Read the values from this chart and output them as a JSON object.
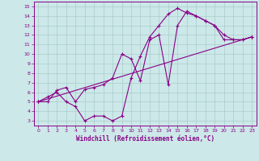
{
  "xlabel": "Windchill (Refroidissement éolien,°C)",
  "xlim": [
    -0.5,
    23.5
  ],
  "ylim": [
    2.5,
    15.5
  ],
  "xticks": [
    0,
    1,
    2,
    3,
    4,
    5,
    6,
    7,
    8,
    9,
    10,
    11,
    12,
    13,
    14,
    15,
    16,
    17,
    18,
    19,
    20,
    21,
    22,
    23
  ],
  "yticks": [
    3,
    4,
    5,
    6,
    7,
    8,
    9,
    10,
    11,
    12,
    13,
    14,
    15
  ],
  "bg_color": "#cce8e8",
  "line_color": "#880088",
  "grid_color": "#aacccc",
  "line1_x": [
    0,
    1,
    2,
    3,
    4,
    5,
    6,
    7,
    8,
    9,
    10,
    11,
    12,
    13,
    14,
    15,
    16,
    17,
    18,
    19,
    20,
    21,
    22,
    23
  ],
  "line1_y": [
    5.0,
    5.5,
    6.0,
    5.0,
    4.5,
    3.0,
    3.5,
    3.5,
    3.0,
    3.5,
    7.5,
    9.8,
    11.8,
    13.0,
    14.2,
    14.8,
    14.3,
    14.0,
    13.5,
    13.0,
    12.0,
    11.5,
    11.5,
    11.8
  ],
  "line2_x": [
    0,
    1,
    2,
    3,
    4,
    5,
    6,
    7,
    8,
    9,
    10,
    11,
    12,
    13,
    14,
    15,
    16,
    17,
    18,
    19,
    20,
    21,
    22,
    23
  ],
  "line2_y": [
    5.0,
    5.0,
    6.2,
    6.5,
    5.0,
    6.3,
    6.5,
    6.8,
    7.5,
    10.0,
    9.5,
    7.2,
    11.5,
    12.0,
    6.8,
    13.0,
    14.5,
    14.0,
    13.5,
    13.0,
    11.5,
    11.5,
    11.5,
    11.8
  ],
  "line3_x": [
    0,
    23
  ],
  "line3_y": [
    5.0,
    11.8
  ]
}
